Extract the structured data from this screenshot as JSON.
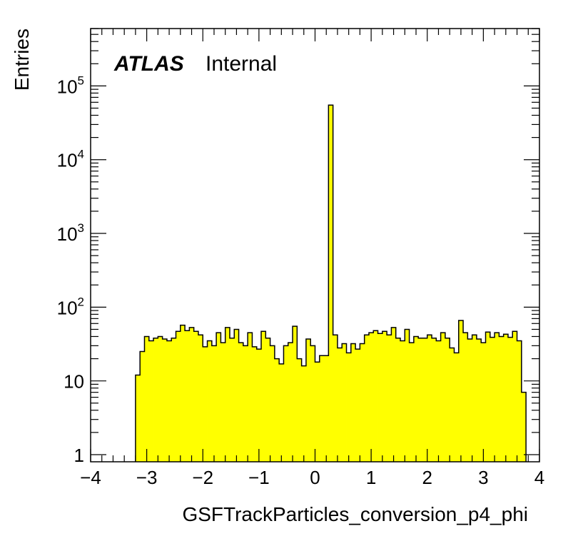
{
  "chart_data": {
    "type": "bar",
    "style": "histogram",
    "xlabel": "GSFTrackParticles_conversion_p4_phi",
    "ylabel": "Entries",
    "xlim": [
      -4,
      4
    ],
    "ylim": [
      0.8,
      600000
    ],
    "yscale": "log",
    "x_ticks": [
      "−4",
      "−3",
      "−2",
      "−1",
      "0",
      "1",
      "2",
      "3",
      "4"
    ],
    "y_ticks": [
      {
        "value": 1,
        "base": "1",
        "exp": ""
      },
      {
        "value": 10,
        "base": "10",
        "exp": ""
      },
      {
        "value": 100,
        "base": "10",
        "exp": "2"
      },
      {
        "value": 1000,
        "base": "10",
        "exp": "3"
      },
      {
        "value": 10000,
        "base": "10",
        "exp": "4"
      },
      {
        "value": 100000,
        "base": "10",
        "exp": "5"
      }
    ],
    "grid": false,
    "fill_color": "#ffff00",
    "line_color": "#000000",
    "bin_width": 0.08,
    "bin_edges_start": -3.2,
    "values": [
      12,
      25,
      40,
      35,
      38,
      40,
      37,
      35,
      38,
      47,
      57,
      48,
      53,
      47,
      42,
      29,
      35,
      30,
      45,
      33,
      53,
      38,
      50,
      33,
      30,
      45,
      29,
      27,
      47,
      38,
      30,
      20,
      17,
      30,
      33,
      55,
      20,
      16,
      37,
      30,
      18,
      22,
      22,
      55000,
      42,
      28,
      32,
      24,
      32,
      27,
      32,
      42,
      45,
      48,
      44,
      47,
      42,
      53,
      38,
      35,
      50,
      33,
      40,
      38,
      38,
      42,
      38,
      35,
      45,
      38,
      28,
      24,
      66,
      45,
      37,
      42,
      37,
      33,
      46,
      39,
      45,
      40,
      43,
      39,
      47,
      35,
      7
    ]
  },
  "labels": {
    "atlas": "ATLAS",
    "internal": "Internal"
  }
}
